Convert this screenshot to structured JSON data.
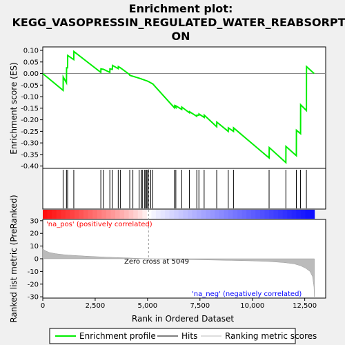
{
  "chart_data": {
    "type": "line",
    "title_line1": "Enrichment plot:",
    "title_line2": "KEGG_VASOPRESSIN_REGULATED_WATER_REABSORPTI",
    "title_line3": "ON",
    "es_panel": {
      "ylabel": "Enrichment score (ES)",
      "ylim": [
        -0.41,
        0.115
      ],
      "yticks": [
        0.1,
        0.05,
        0.0,
        -0.05,
        -0.1,
        -0.15,
        -0.2,
        -0.25,
        -0.3,
        -0.35,
        -0.4
      ],
      "ytick_labels": [
        "0.10",
        "0.05",
        "0.00",
        "-0.05",
        "-0.10",
        "-0.15",
        "-0.20",
        "-0.25",
        "-0.30",
        "-0.35",
        "-0.40"
      ],
      "series": [
        {
          "name": "Enrichment profile",
          "color": "#00ee00",
          "x": [
            0,
            970,
            975,
            1130,
            1135,
            1185,
            1190,
            1480,
            1485,
            2770,
            2775,
            2900,
            3200,
            3205,
            3320,
            3325,
            3600,
            3605,
            3700,
            4150,
            4155,
            4300,
            4600,
            4700,
            4750,
            4850,
            4900,
            4950,
            5000,
            5050,
            5150,
            5250,
            6280,
            6285,
            6350,
            6355,
            6630,
            6635,
            7000,
            7005,
            7350,
            7355,
            7450,
            7455,
            7700,
            7705,
            8300,
            8305,
            8850,
            8855,
            9100,
            9105,
            10800,
            10805,
            11600,
            11605,
            12100,
            12105,
            12300,
            12305,
            12580,
            12585,
            12950
          ],
          "y": [
            0.0,
            -0.073,
            -0.015,
            -0.04,
            0.025,
            0.025,
            0.078,
            0.06,
            0.095,
            0.005,
            0.02,
            0.018,
            0.005,
            0.02,
            0.018,
            0.035,
            0.021,
            0.03,
            0.025,
            -0.005,
            -0.008,
            -0.012,
            -0.02,
            -0.023,
            -0.025,
            -0.028,
            -0.03,
            -0.031,
            -0.033,
            -0.035,
            -0.04,
            -0.045,
            -0.148,
            -0.14,
            -0.147,
            -0.14,
            -0.155,
            -0.145,
            -0.17,
            -0.165,
            -0.185,
            -0.18,
            -0.18,
            -0.175,
            -0.19,
            -0.18,
            -0.23,
            -0.21,
            -0.25,
            -0.235,
            -0.25,
            -0.235,
            -0.365,
            -0.32,
            -0.385,
            -0.315,
            -0.355,
            -0.245,
            -0.26,
            -0.135,
            -0.16,
            0.03,
            0.0
          ]
        }
      ]
    },
    "hits": [
      970,
      1130,
      1185,
      1480,
      2770,
      2900,
      3200,
      3320,
      3600,
      3700,
      4150,
      4300,
      4600,
      4700,
      4750,
      4850,
      4900,
      4950,
      5000,
      5050,
      5150,
      5250,
      6280,
      6350,
      6630,
      7000,
      7350,
      7450,
      7700,
      8300,
      8850,
      9100,
      10800,
      11600,
      12100,
      12300,
      12580
    ],
    "rank_panel": {
      "ylabel": "Ranked list metric (PreRanked)",
      "xlabel": "Rank in Ordered Dataset",
      "xlim": [
        0,
        13500
      ],
      "ylim": [
        -31,
        31
      ],
      "xticks": [
        0,
        2500,
        5000,
        7500,
        10000,
        12500
      ],
      "xtick_labels": [
        "0",
        "2,500",
        "5,000",
        "7,500",
        "10,000",
        "12,500"
      ],
      "yticks": [
        30,
        20,
        10,
        0,
        -10,
        -20,
        -30
      ],
      "ytick_labels": [
        "30",
        "20",
        "10",
        "0",
        "-10",
        "-20",
        "-30"
      ],
      "metric_x": [
        0,
        100,
        300,
        600,
        1000,
        1500,
        2000,
        2500,
        3000,
        3500,
        4000,
        4500,
        5049,
        6000,
        7000,
        8000,
        9000,
        10000,
        10800,
        11500,
        12000,
        12300,
        12550,
        12750,
        12870,
        12940,
        12960
      ],
      "metric_y": [
        8.0,
        6.5,
        5.0,
        4.0,
        3.2,
        2.6,
        2.1,
        1.7,
        1.3,
        1.0,
        0.7,
        0.35,
        0.0,
        -0.35,
        -0.7,
        -1.0,
        -1.3,
        -1.7,
        -2.2,
        -3.0,
        -4.0,
        -5.5,
        -7.5,
        -10.0,
        -14.0,
        -22.0,
        -30.0
      ],
      "pos_label": "'na_pos' (positively correlated)",
      "neg_label": "'na_neg' (negatively correlated)",
      "zero_cross_label": "Zero cross at 5049",
      "zero_cross": 5049,
      "pos_color": "#ff0000",
      "neg_color": "#0000ff"
    },
    "legend": [
      {
        "label": "Enrichment profile",
        "color": "#00ee00"
      },
      {
        "label": "Hits",
        "color": "#000000"
      },
      {
        "label": "Ranking metric scores",
        "color": "#bbbbbb"
      }
    ],
    "grid": false
  }
}
